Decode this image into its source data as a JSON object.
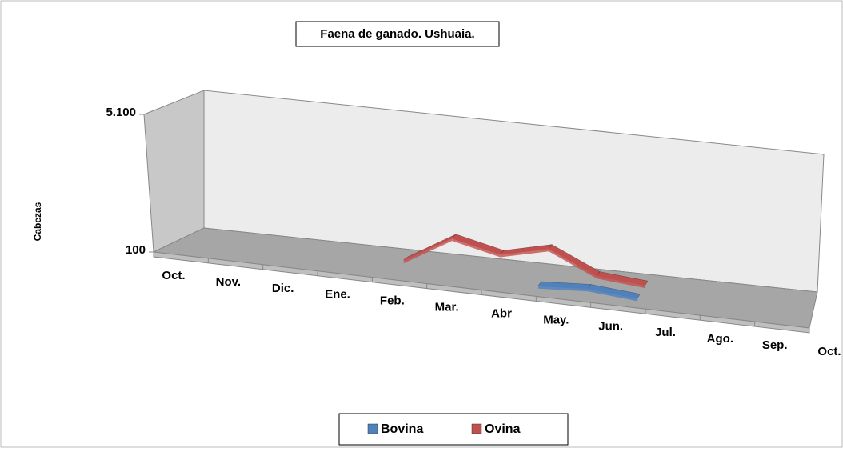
{
  "chart_data": {
    "type": "line",
    "title": "Faena de ganado. Ushuaia.",
    "y_label": "Cabezas",
    "categories": [
      "Oct.",
      "Nov.",
      "Dic.",
      "Ene.",
      "Feb.",
      "Mar.",
      "Abr",
      "May.",
      "Jun.",
      "Jul.",
      "Ago.",
      "Sep.",
      "Oct."
    ],
    "series": [
      {
        "name": "Bovina",
        "color": "#4f81bd",
        "values": [
          null,
          null,
          null,
          null,
          null,
          null,
          null,
          200,
          300,
          150,
          null,
          null,
          null
        ]
      },
      {
        "name": "Ovina",
        "color": "#c0504d",
        "values": [
          null,
          null,
          null,
          null,
          100,
          1100,
          700,
          1100,
          300,
          150,
          null,
          null,
          null
        ]
      }
    ],
    "ylim": [
      100,
      5100
    ],
    "yticks": [
      100,
      {
        "value": 5100,
        "label": "5.100"
      }
    ],
    "legend": "bottom"
  }
}
